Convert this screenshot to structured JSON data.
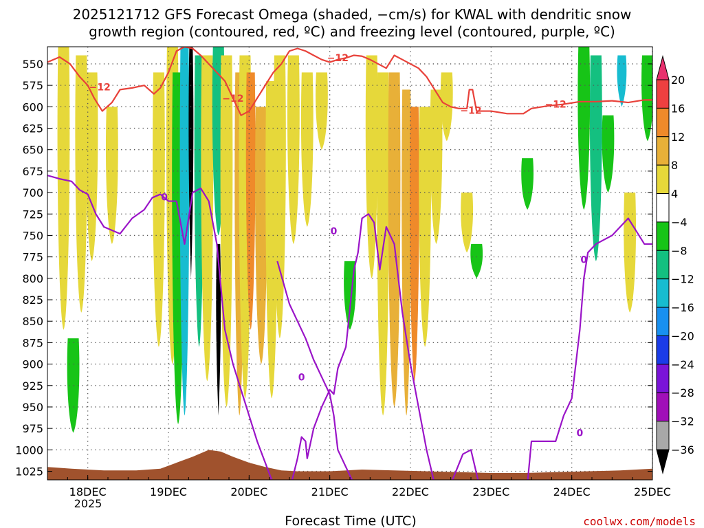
{
  "title": {
    "line1": "2025121712 GFS Forecast Omega (shaded, −cm/s) for KWAL with dendritic snow",
    "line2": "growth region (contoured, red, ºC) and freezing level (contoured, purple, ºC)"
  },
  "credit": "coolwx.com/models",
  "chart_data": {
    "type": "heatmap",
    "title": "2025121712 GFS Forecast Omega (shaded, −cm/s) for KWAL with dendritic snow growth region (contoured, red, ºC) and freezing level (contoured, purple, ºC)",
    "xlabel": "Forecast Time (UTC)",
    "ylabel": "",
    "x_tick_labels": [
      "18DEC",
      "19DEC",
      "20DEC",
      "21DEC",
      "22DEC",
      "23DEC",
      "24DEC",
      "25DEC"
    ],
    "x_tick_year": "2025",
    "xlim_days": [
      17.5,
      25.0
    ],
    "y_tick_labels": [
      "550",
      "575",
      "600",
      "625",
      "650",
      "675",
      "700",
      "725",
      "750",
      "775",
      "800",
      "825",
      "850",
      "875",
      "900",
      "925",
      "950",
      "975",
      "1000",
      "1025"
    ],
    "ylim_hpa": [
      1035,
      530
    ],
    "y_inverted": true,
    "grid": true,
    "colorbar": {
      "tick_labels": [
        "20",
        "16",
        "12",
        "8",
        "4",
        "−4",
        "−8",
        "−12",
        "−16",
        "−20",
        "−24",
        "−28",
        "−32",
        "−36"
      ],
      "colors": [
        "#e8306e",
        "#ee4040",
        "#ef8a2a",
        "#e8b038",
        "#e6d83a",
        "#ffffff",
        "#17c417",
        "#14c080",
        "#17bcd0",
        "#1890f0",
        "#1a3ce8",
        "#7a14d8",
        "#a010b8",
        "#a8a8a8",
        "#000000"
      ]
    },
    "omega_bands": [
      {
        "day": 17.7,
        "top": 530,
        "bottom": 860,
        "value": 5
      },
      {
        "day": 17.92,
        "top": 540,
        "bottom": 840,
        "value": 6
      },
      {
        "day": 18.05,
        "top": 560,
        "bottom": 780,
        "value": 5
      },
      {
        "day": 17.82,
        "top": 870,
        "bottom": 980,
        "value": -6
      },
      {
        "day": 18.3,
        "top": 600,
        "bottom": 760,
        "value": 5
      },
      {
        "day": 18.88,
        "top": 560,
        "bottom": 880,
        "value": 5
      },
      {
        "day": 19.05,
        "top": 530,
        "bottom": 900,
        "value": 6
      },
      {
        "day": 19.12,
        "top": 560,
        "bottom": 970,
        "value": -6
      },
      {
        "day": 19.2,
        "top": 530,
        "bottom": 960,
        "value": -14
      },
      {
        "day": 19.28,
        "top": 530,
        "bottom": 800,
        "value": -36
      },
      {
        "day": 19.38,
        "top": 540,
        "bottom": 880,
        "value": -10
      },
      {
        "day": 19.48,
        "top": 540,
        "bottom": 920,
        "value": 5
      },
      {
        "day": 19.62,
        "top": 760,
        "bottom": 960,
        "value": -36
      },
      {
        "day": 19.62,
        "top": 530,
        "bottom": 750,
        "value": -8
      },
      {
        "day": 19.72,
        "top": 540,
        "bottom": 950,
        "value": 6
      },
      {
        "day": 19.88,
        "top": 560,
        "bottom": 960,
        "value": 10
      },
      {
        "day": 19.95,
        "top": 540,
        "bottom": 940,
        "value": 5
      },
      {
        "day": 20.02,
        "top": 560,
        "bottom": 860,
        "value": 12
      },
      {
        "day": 20.15,
        "top": 600,
        "bottom": 900,
        "value": 9
      },
      {
        "day": 20.28,
        "top": 570,
        "bottom": 940,
        "value": 6
      },
      {
        "day": 20.38,
        "top": 540,
        "bottom": 870,
        "value": 5
      },
      {
        "day": 20.55,
        "top": 540,
        "bottom": 760,
        "value": 6
      },
      {
        "day": 20.72,
        "top": 560,
        "bottom": 740,
        "value": 5
      },
      {
        "day": 20.9,
        "top": 560,
        "bottom": 650,
        "value": 5
      },
      {
        "day": 21.25,
        "top": 780,
        "bottom": 860,
        "value": -6
      },
      {
        "day": 21.52,
        "top": 540,
        "bottom": 800,
        "value": 5
      },
      {
        "day": 21.66,
        "top": 560,
        "bottom": 960,
        "value": 6
      },
      {
        "day": 21.8,
        "top": 560,
        "bottom": 950,
        "value": 8
      },
      {
        "day": 21.95,
        "top": 580,
        "bottom": 960,
        "value": 10
      },
      {
        "day": 22.05,
        "top": 600,
        "bottom": 920,
        "value": 12
      },
      {
        "day": 22.18,
        "top": 600,
        "bottom": 880,
        "value": 7
      },
      {
        "day": 22.32,
        "top": 580,
        "bottom": 760,
        "value": 5
      },
      {
        "day": 22.45,
        "top": 560,
        "bottom": 640,
        "value": 5
      },
      {
        "day": 22.7,
        "top": 700,
        "bottom": 770,
        "value": 5
      },
      {
        "day": 22.82,
        "top": 760,
        "bottom": 800,
        "value": -6
      },
      {
        "day": 23.45,
        "top": 660,
        "bottom": 720,
        "value": -6
      },
      {
        "day": 24.15,
        "top": 530,
        "bottom": 720,
        "value": -6
      },
      {
        "day": 24.3,
        "top": 540,
        "bottom": 780,
        "value": -8
      },
      {
        "day": 24.45,
        "top": 610,
        "bottom": 700,
        "value": -6
      },
      {
        "day": 24.62,
        "top": 540,
        "bottom": 600,
        "value": -12
      },
      {
        "day": 24.72,
        "top": 700,
        "bottom": 840,
        "value": 5
      },
      {
        "day": 24.94,
        "top": 540,
        "bottom": 640,
        "value": -7
      }
    ],
    "series": [
      {
        "name": "−12",
        "color": "#e8413a",
        "x_days": [
          17.5,
          17.65,
          17.78,
          17.9,
          18.0,
          18.08,
          18.18,
          18.3,
          18.4,
          18.55,
          18.7,
          18.82,
          18.9,
          19.0,
          19.1,
          19.2,
          19.3,
          19.4,
          19.5,
          19.6,
          19.7,
          19.8,
          19.9,
          20.0,
          20.1,
          20.2,
          20.3,
          20.4,
          20.5,
          20.6,
          20.7,
          20.8,
          20.9,
          21.0,
          21.1,
          21.2,
          21.3,
          21.4,
          21.5,
          21.6,
          21.7,
          21.8,
          21.9,
          22.0,
          22.1,
          22.2,
          22.3,
          22.4,
          22.5,
          22.6,
          22.7,
          22.73,
          22.77,
          22.82,
          22.9,
          23.0,
          23.2,
          23.4,
          23.5,
          23.7,
          23.9,
          24.1,
          24.3,
          24.5,
          24.7,
          24.9,
          25.0
        ],
        "y_hpa": [
          548,
          542,
          550,
          565,
          575,
          590,
          605,
          595,
          580,
          578,
          575,
          585,
          578,
          560,
          535,
          530,
          532,
          540,
          550,
          560,
          570,
          590,
          610,
          605,
          590,
          575,
          560,
          550,
          535,
          532,
          535,
          540,
          545,
          548,
          545,
          543,
          540,
          541,
          545,
          550,
          555,
          540,
          545,
          550,
          555,
          565,
          580,
          595,
          600,
          602,
          602,
          580,
          580,
          605,
          605,
          605,
          608,
          608,
          602,
          599,
          597,
          594,
          594,
          593,
          595,
          592,
          592
        ]
      },
      {
        "name": "0",
        "color": "#9a14c8",
        "x_days": [
          17.5,
          17.65,
          17.8,
          17.9,
          18.0,
          18.1,
          18.2,
          18.4,
          18.55,
          18.7,
          18.8,
          18.9,
          19.0,
          19.1,
          19.2,
          19.3,
          19.4,
          19.5,
          19.6,
          19.7,
          19.8,
          19.9,
          20.0,
          20.1,
          20.2,
          20.3,
          20.33,
          20.38,
          20.43,
          20.48,
          20.5
        ],
        "y_hpa": [
          680,
          684,
          687,
          697,
          702,
          725,
          740,
          748,
          730,
          720,
          706,
          702,
          710,
          710,
          760,
          700,
          695,
          710,
          760,
          860,
          900,
          930,
          960,
          990,
          1015,
          1040,
          1040,
          1040,
          1040,
          1040,
          1040
        ]
      },
      {
        "name": "0",
        "color": "#9a14c8",
        "x_days": [
          20.52,
          20.6,
          20.65,
          20.7,
          20.72,
          20.8,
          20.9,
          21.0,
          21.05,
          21.1,
          21.2,
          21.3,
          21.35,
          21.4,
          21.48,
          21.55,
          21.62,
          21.7,
          21.8,
          21.9,
          22.0,
          22.1,
          22.2,
          22.3
        ],
        "y_hpa": [
          1040,
          1010,
          985,
          990,
          1010,
          975,
          950,
          930,
          935,
          905,
          880,
          790,
          770,
          730,
          725,
          735,
          790,
          740,
          760,
          840,
          900,
          950,
          1000,
          1040
        ]
      },
      {
        "name": "0",
        "color": "#9a14c8",
        "x_days": [
          20.35,
          20.5,
          20.6,
          20.7,
          20.8,
          20.9,
          21.0,
          21.05,
          21.1,
          21.2,
          21.3
        ],
        "y_hpa": [
          780,
          830,
          850,
          870,
          895,
          915,
          935,
          960,
          1000,
          1020,
          1040
        ]
      },
      {
        "name": "0",
        "color": "#9a14c8",
        "x_days": [
          22.3,
          22.5,
          22.65,
          22.75,
          22.85,
          23.0,
          23.2,
          23.3,
          23.45,
          23.5,
          23.6,
          23.8,
          23.9,
          24.0,
          24.05,
          24.1,
          24.15,
          24.2,
          24.3,
          24.4,
          24.5,
          24.6,
          24.7,
          24.8,
          24.9,
          25.0
        ],
        "y_hpa": [
          1040,
          1040,
          1005,
          1000,
          1040,
          1040,
          1040,
          1040,
          1040,
          990,
          990,
          990,
          960,
          940,
          900,
          860,
          800,
          770,
          760,
          755,
          750,
          740,
          730,
          745,
          760,
          760
        ]
      }
    ],
    "terrain_hpa": {
      "x_days": [
        17.5,
        17.8,
        18.2,
        18.6,
        18.9,
        19.1,
        19.3,
        19.5,
        19.65,
        19.8,
        20.0,
        20.2,
        20.4,
        20.6,
        21.0,
        21.4,
        21.8,
        22.2,
        22.6,
        23.0,
        23.4,
        23.8,
        24.2,
        24.6,
        25.0
      ],
      "y_hpa": [
        1020,
        1022,
        1024,
        1024,
        1022,
        1015,
        1008,
        1000,
        1002,
        1008,
        1015,
        1020,
        1024,
        1025,
        1025,
        1023,
        1024,
        1025,
        1026,
        1027,
        1027,
        1026,
        1025,
        1024,
        1022
      ]
    }
  }
}
